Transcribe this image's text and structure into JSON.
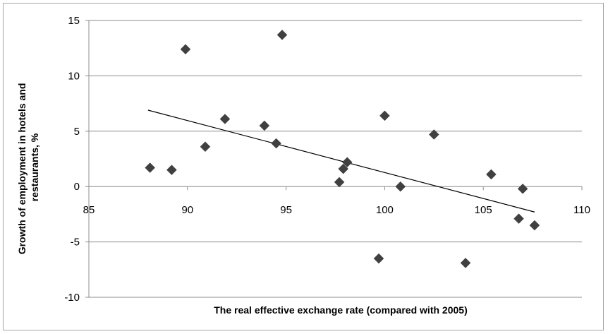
{
  "chart_data": {
    "type": "scatter",
    "title": "",
    "xlabel": "The real effective exchange rate (compared with 2005)",
    "ylabel": "Growth of employment in hotels and restaurants, %",
    "ylabel_lines": [
      "Growth of employment in hotels and",
      "restaurants, %"
    ],
    "xlim": [
      85,
      110
    ],
    "ylim": [
      -10,
      15
    ],
    "x_ticks": [
      85,
      90,
      95,
      100,
      105,
      110
    ],
    "y_ticks": [
      -10,
      -5,
      0,
      5,
      10,
      15
    ],
    "x_tick_labels": [
      "85",
      "90",
      "95",
      "100",
      "105",
      "110"
    ],
    "y_tick_labels": [
      "-10",
      "-5",
      "0",
      "5",
      "10",
      "15"
    ],
    "grid": "horizontal",
    "legend": "none",
    "marker": "diamond",
    "marker_color": "#404040",
    "points": [
      {
        "x": 88.1,
        "y": 1.7
      },
      {
        "x": 89.2,
        "y": 1.5
      },
      {
        "x": 89.9,
        "y": 12.4
      },
      {
        "x": 90.9,
        "y": 3.6
      },
      {
        "x": 91.9,
        "y": 6.1
      },
      {
        "x": 93.9,
        "y": 5.5
      },
      {
        "x": 94.5,
        "y": 3.9
      },
      {
        "x": 94.8,
        "y": 13.7
      },
      {
        "x": 97.7,
        "y": 0.4
      },
      {
        "x": 97.9,
        "y": 1.6
      },
      {
        "x": 98.1,
        "y": 2.2
      },
      {
        "x": 99.7,
        "y": -6.5
      },
      {
        "x": 100.0,
        "y": 6.4
      },
      {
        "x": 100.8,
        "y": 0.0
      },
      {
        "x": 102.5,
        "y": 4.7
      },
      {
        "x": 104.1,
        "y": -6.9
      },
      {
        "x": 105.4,
        "y": 1.1
      },
      {
        "x": 106.8,
        "y": -2.9
      },
      {
        "x": 107.0,
        "y": -0.2
      },
      {
        "x": 107.6,
        "y": -3.5
      }
    ],
    "trendline": {
      "x": [
        88.0,
        107.6
      ],
      "y": [
        6.9,
        -2.3
      ],
      "color": "#000000"
    }
  }
}
